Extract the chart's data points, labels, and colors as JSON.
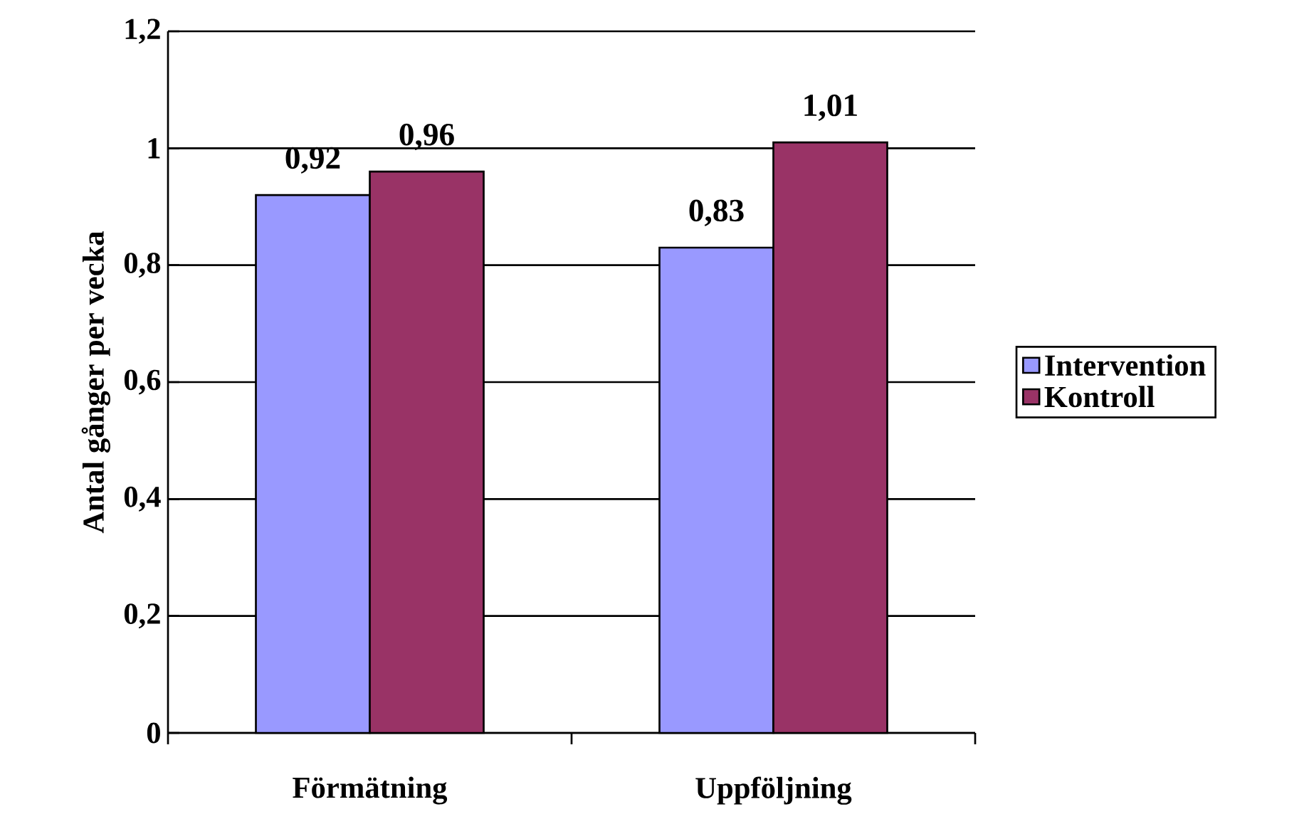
{
  "chart_data": {
    "type": "bar",
    "ylabel": "Antal gånger per vecka",
    "categories": [
      "Förmätning",
      "Uppföljning"
    ],
    "series": [
      {
        "name": "Intervention",
        "color": "#9999ff",
        "values": [
          0.92,
          0.83
        ],
        "value_labels": [
          "0,92",
          "0,83"
        ]
      },
      {
        "name": "Kontroll",
        "color": "#993366",
        "values": [
          0.96,
          1.01
        ],
        "value_labels": [
          "0,96",
          "1,01"
        ]
      }
    ],
    "ylim": [
      0,
      1.2
    ],
    "yticks": [
      {
        "value": 0,
        "label": "0"
      },
      {
        "value": 0.2,
        "label": "0,2"
      },
      {
        "value": 0.4,
        "label": "0,4"
      },
      {
        "value": 0.6,
        "label": "0,6"
      },
      {
        "value": 0.8,
        "label": "0,8"
      },
      {
        "value": 1,
        "label": "1"
      },
      {
        "value": 1.2,
        "label": "1,2"
      }
    ],
    "grid": "y",
    "legend": "right"
  }
}
